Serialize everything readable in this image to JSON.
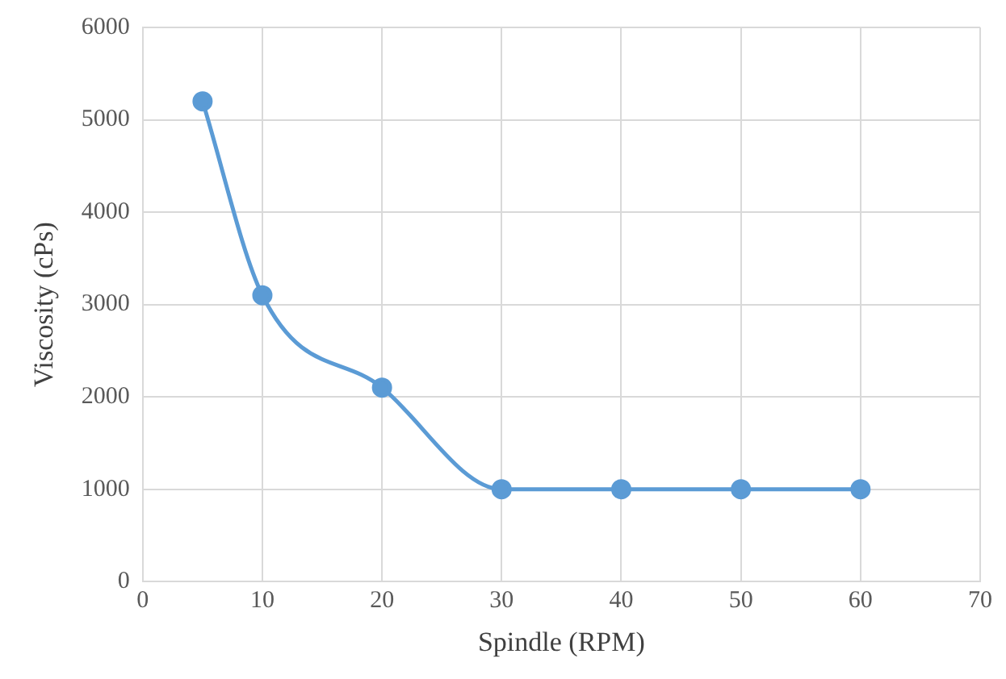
{
  "chart_data": {
    "type": "line",
    "xlabel": "Spindle (RPM)",
    "ylabel": "Viscosity (cPs)",
    "x": [
      5,
      10,
      20,
      30,
      40,
      50,
      60
    ],
    "series": [
      {
        "color": "#5b9bd5",
        "values": [
          5200,
          3100,
          2100,
          1000,
          1000,
          1000,
          1000
        ]
      }
    ],
    "xlim": [
      0,
      70
    ],
    "xticks": [
      0,
      10,
      20,
      30,
      40,
      50,
      60,
      70
    ],
    "ylim": [
      0,
      6000
    ],
    "yticks": [
      0,
      1000,
      2000,
      3000,
      4000,
      5000,
      6000
    ],
    "grid": true,
    "marker": "circle",
    "line_style": "solid"
  }
}
